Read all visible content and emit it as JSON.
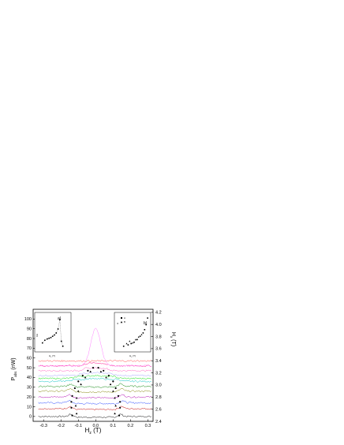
{
  "chart_data": [
    {
      "type": "line",
      "xlabel_main": "H",
      "xlabel_sub": "z",
      "xlabel_unit": " (T)",
      "ylabel_left_main": "P",
      "ylabel_left_sub": "abs",
      "ylabel_left_unit": " (nW)",
      "ylabel_right_main": "H",
      "ylabel_right_sub": "x",
      "ylabel_right_unit": " (T)",
      "xlim": [
        -0.36,
        0.33
      ],
      "ylim": [
        -5,
        110
      ],
      "ylim_right": [
        2.4,
        4.25
      ],
      "xticks": [
        "-0.3",
        "-0.2",
        "-0.1",
        "0.0",
        "0.1",
        "0.2",
        "0.3"
      ],
      "xtick_values": [
        -0.3,
        -0.2,
        -0.1,
        0.0,
        0.1,
        0.2,
        0.3
      ],
      "yticks_left": [
        "0",
        "10",
        "20",
        "30",
        "40",
        "50",
        "60",
        "70",
        "80",
        "90",
        "100"
      ],
      "yticks_right": [
        "2.4",
        "2.6",
        "2.8",
        "3.0",
        "3.2",
        "3.4",
        "3.6",
        "3.8",
        "4.0",
        "4.2"
      ],
      "series": [
        {
          "color": "#000000",
          "baseline": 0,
          "kind": "dip",
          "center_width": 0.14
        },
        {
          "color": "#c00000",
          "baseline": 8,
          "kind": "dip",
          "center_width": 0.145
        },
        {
          "color": "#2040ff",
          "baseline": 14,
          "kind": "dip",
          "center_width": 0.15
        },
        {
          "color": "#b000b0",
          "baseline": 20,
          "kind": "dip",
          "center_width": 0.15
        },
        {
          "color": "#808000",
          "baseline": 26,
          "kind": "dip",
          "center_width": 0.145
        },
        {
          "color": "#008000",
          "baseline": 31,
          "kind": "dip",
          "center_width": 0.14
        },
        {
          "color": "#00c0c0",
          "baseline": 36,
          "kind": "hump",
          "center_width": 0.12
        },
        {
          "color": "#00e000",
          "baseline": 39,
          "kind": "hump",
          "center_width": 0.1
        },
        {
          "color": "#a0a0ff",
          "baseline": 42,
          "kind": "hump",
          "center_width": 0.08
        },
        {
          "color": "#ff60c0",
          "baseline": 47,
          "kind": "hump",
          "center_width": 0.06
        },
        {
          "color": "#ff0080",
          "baseline": 52,
          "kind": "hump",
          "center_width": 0.05
        },
        {
          "color": "#ff4040",
          "baseline": 57,
          "kind": "flat",
          "center_width": 0.0
        },
        {
          "color": "#ff80ff",
          "baseline": 56,
          "kind": "peak",
          "center_width": 0.04
        }
      ],
      "points_solid": [
        {
          "x": -0.135,
          "y": 1
        },
        {
          "x": 0.135,
          "y": 1
        },
        {
          "x": -0.14,
          "y": 9
        },
        {
          "x": 0.14,
          "y": 9
        },
        {
          "x": -0.14,
          "y": 15
        },
        {
          "x": 0.14,
          "y": 15
        },
        {
          "x": -0.135,
          "y": 21
        },
        {
          "x": 0.13,
          "y": 21
        },
        {
          "x": -0.12,
          "y": 29
        },
        {
          "x": 0.115,
          "y": 29
        },
        {
          "x": -0.1,
          "y": 36
        },
        {
          "x": 0.1,
          "y": 36
        },
        {
          "x": -0.075,
          "y": 42
        },
        {
          "x": 0.075,
          "y": 42
        },
        {
          "x": -0.045,
          "y": 47
        },
        {
          "x": 0.045,
          "y": 47
        },
        {
          "x": -0.015,
          "y": 50
        },
        {
          "x": 0.015,
          "y": 50
        }
      ],
      "points_triangle": [
        {
          "x": -0.11,
          "y": 3
        },
        {
          "x": 0.11,
          "y": 3
        },
        {
          "x": -0.115,
          "y": 11
        },
        {
          "x": 0.115,
          "y": 11
        },
        {
          "x": -0.11,
          "y": 19
        },
        {
          "x": 0.11,
          "y": 19
        },
        {
          "x": -0.1,
          "y": 26
        },
        {
          "x": 0.1,
          "y": 26
        },
        {
          "x": -0.085,
          "y": 33
        },
        {
          "x": 0.085,
          "y": 33
        },
        {
          "x": -0.06,
          "y": 40
        },
        {
          "x": 0.06,
          "y": 40
        },
        {
          "x": -0.03,
          "y": 46
        },
        {
          "x": 0.03,
          "y": 46
        }
      ]
    },
    {
      "type": "scatter",
      "inset_label": "a)",
      "xlabel_main": "H",
      "xlabel_sub": "x",
      "xlabel_unit": " (T)",
      "ylabel": "δH",
      "series": [
        {
          "marker": "square",
          "values": [
            [
              0.1,
              0.2
            ],
            [
              0.18,
              0.28
            ],
            [
              0.26,
              0.32
            ],
            [
              0.32,
              0.34
            ],
            [
              0.38,
              0.36
            ],
            [
              0.44,
              0.4
            ],
            [
              0.5,
              0.44
            ],
            [
              0.56,
              0.5
            ],
            [
              0.62,
              0.62
            ],
            [
              0.68,
              0.9
            ],
            [
              0.73,
              0.25
            ],
            [
              0.78,
              0.1
            ]
          ]
        }
      ]
    },
    {
      "type": "scatter",
      "inset_label": "b)",
      "xlabel_main": "H",
      "xlabel_sub": "x",
      "xlabel_unit": " (T)",
      "ylabel": "H",
      "legend": [
        "A",
        "B"
      ],
      "series": [
        {
          "name": "A",
          "marker": "square",
          "values": [
            [
              0.15,
              0.1
            ],
            [
              0.3,
              0.14
            ],
            [
              0.4,
              0.18
            ],
            [
              0.5,
              0.22
            ],
            [
              0.6,
              0.3
            ],
            [
              0.7,
              0.4
            ],
            [
              0.8,
              0.5
            ],
            [
              0.85,
              0.6
            ],
            [
              0.9,
              0.75
            ],
            [
              0.95,
              0.95
            ]
          ]
        },
        {
          "name": "B",
          "marker": "triangle",
          "values": [
            [
              0.25,
              0.18
            ],
            [
              0.35,
              0.25
            ],
            [
              0.45,
              0.2
            ],
            [
              0.55,
              0.3
            ],
            [
              0.65,
              0.38
            ],
            [
              0.75,
              0.45
            ]
          ]
        }
      ]
    }
  ]
}
